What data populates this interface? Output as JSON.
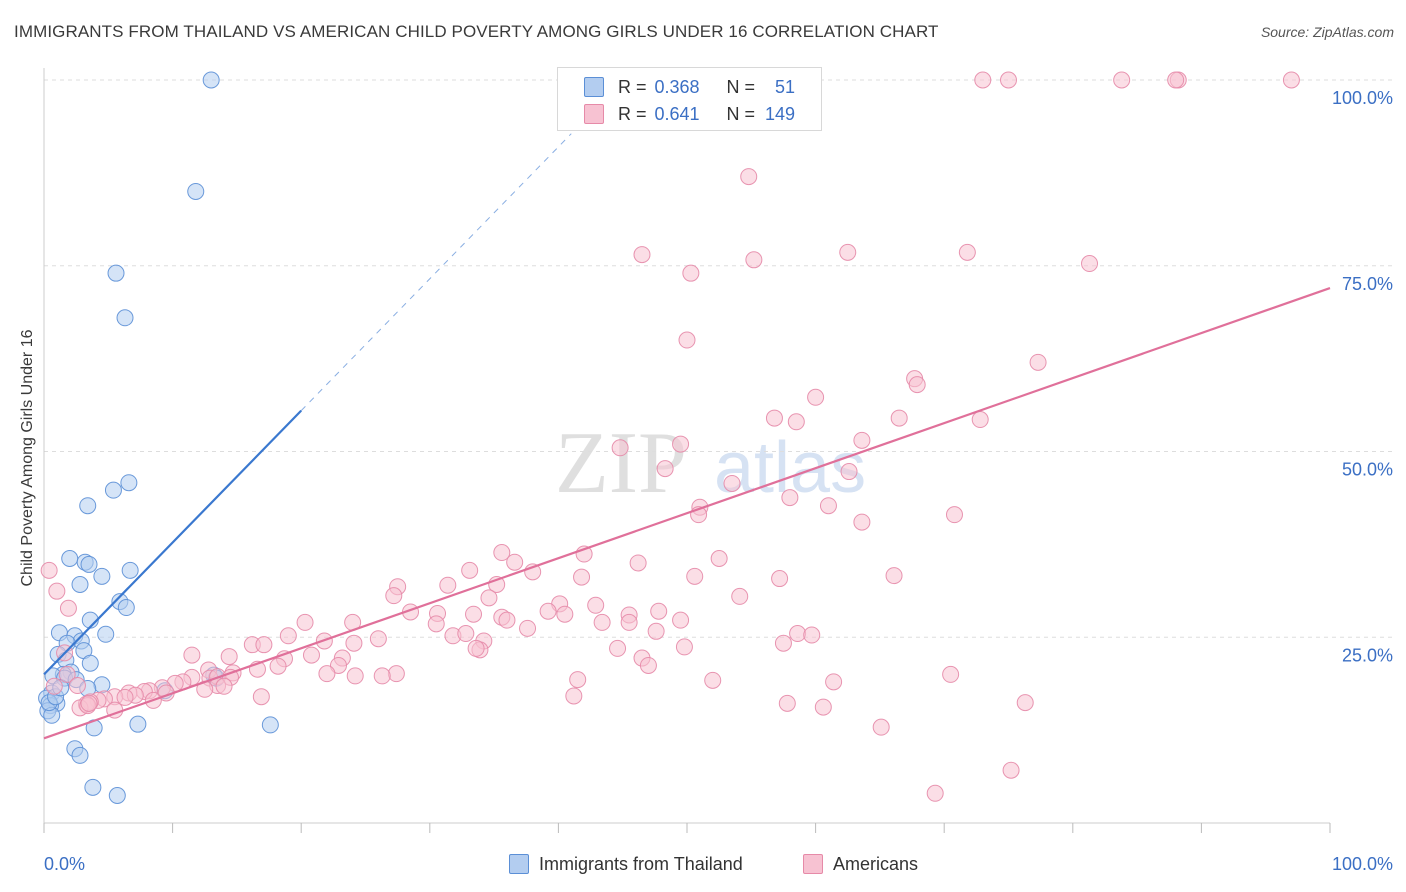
{
  "title": "IMMIGRANTS FROM THAILAND VS AMERICAN CHILD POVERTY AMONG GIRLS UNDER 16 CORRELATION CHART",
  "source": "Source: ZipAtlas.com",
  "watermark": "ZIPatlas",
  "colors": {
    "blue_fill": "#b3cdf0",
    "blue_stroke": "#5b8fd6",
    "blue_line": "#3a78cf",
    "pink_fill": "#f7c2d2",
    "pink_stroke": "#e68aa8",
    "pink_line": "#e0709a",
    "value_text": "#3b6fc4",
    "grid": "#dddddd"
  },
  "legend": {
    "r_label": "R =",
    "n_label": "N =",
    "rows": [
      {
        "r": "0.368",
        "n": "51",
        "color": "blue"
      },
      {
        "r": "0.641",
        "n": "149",
        "color": "pink"
      }
    ]
  },
  "bottom_legend": [
    {
      "label": "Immigrants from Thailand",
      "color": "blue"
    },
    {
      "label": "Americans",
      "color": "pink"
    }
  ],
  "chart_data": {
    "type": "scatter",
    "xlabel": "",
    "ylabel": "Child Poverty Among Girls Under 16",
    "xlim": [
      0,
      100
    ],
    "ylim": [
      0,
      100
    ],
    "x_tick_labels": [
      "0.0%",
      "100.0%"
    ],
    "y_tick_labels": [
      "25.0%",
      "50.0%",
      "75.0%",
      "100.0%"
    ],
    "y_ticks": [
      25,
      50,
      75,
      100
    ],
    "grid": "horizontal dashed",
    "legend_position": "top-center",
    "series": [
      {
        "name": "Immigrants from Thailand",
        "color": "blue",
        "trend": {
          "x0": 0,
          "y0": 20,
          "x1": 20,
          "y1": 55.5,
          "dash_to_x": 41
        },
        "points": [
          [
            13,
            100
          ],
          [
            11.8,
            85
          ],
          [
            5.6,
            74
          ],
          [
            6.3,
            68
          ],
          [
            6.6,
            45.8
          ],
          [
            5.4,
            44.8
          ],
          [
            3.4,
            42.7
          ],
          [
            2,
            35.6
          ],
          [
            3.2,
            35.1
          ],
          [
            3.5,
            34.8
          ],
          [
            6.7,
            34
          ],
          [
            4.5,
            33.2
          ],
          [
            2.8,
            32.1
          ],
          [
            5.9,
            29.8
          ],
          [
            6.4,
            29
          ],
          [
            3.6,
            27.3
          ],
          [
            1.2,
            25.6
          ],
          [
            2.4,
            25.2
          ],
          [
            4.8,
            25.4
          ],
          [
            2.9,
            24.5
          ],
          [
            1.8,
            24.2
          ],
          [
            3.1,
            23.2
          ],
          [
            1.1,
            22.7
          ],
          [
            1.7,
            21.9
          ],
          [
            3.6,
            21.5
          ],
          [
            2.1,
            20.3
          ],
          [
            1.5,
            20
          ],
          [
            0.7,
            19.8
          ],
          [
            1.6,
            19.5
          ],
          [
            2.5,
            19.3
          ],
          [
            4.5,
            18.6
          ],
          [
            3.4,
            18.1
          ],
          [
            0.6,
            17.5
          ],
          [
            0.2,
            16.8
          ],
          [
            1,
            16.1
          ],
          [
            0.5,
            15.8
          ],
          [
            0.3,
            15.1
          ],
          [
            0.6,
            14.5
          ],
          [
            9.4,
            17.8
          ],
          [
            13.2,
            19.9
          ],
          [
            13.4,
            19.5
          ],
          [
            7.3,
            13.3
          ],
          [
            17.6,
            13.2
          ],
          [
            3.9,
            12.8
          ],
          [
            2.4,
            10
          ],
          [
            2.8,
            9.1
          ],
          [
            3.8,
            4.8
          ],
          [
            5.7,
            3.7
          ],
          [
            0.4,
            16.2
          ],
          [
            0.9,
            17
          ],
          [
            1.3,
            18.2
          ]
        ]
      },
      {
        "name": "Americans",
        "color": "pink",
        "trend": {
          "x0": 0,
          "y0": 11.4,
          "x1": 100,
          "y1": 72
        },
        "points": [
          [
            59,
            100
          ],
          [
            75,
            100
          ],
          [
            73,
            100
          ],
          [
            83.8,
            100
          ],
          [
            88.2,
            100
          ],
          [
            88,
            100
          ],
          [
            97,
            100
          ],
          [
            54.8,
            87
          ],
          [
            46.5,
            76.5
          ],
          [
            55.2,
            75.8
          ],
          [
            62.5,
            76.8
          ],
          [
            71.8,
            76.8
          ],
          [
            50.3,
            74
          ],
          [
            81.3,
            75.3
          ],
          [
            50,
            65
          ],
          [
            77.3,
            62
          ],
          [
            67.7,
            59.8
          ],
          [
            67.9,
            59
          ],
          [
            60,
            57.3
          ],
          [
            56.8,
            54.5
          ],
          [
            58.5,
            54
          ],
          [
            66.5,
            54.5
          ],
          [
            72.8,
            54.3
          ],
          [
            63.6,
            51.5
          ],
          [
            49.5,
            51
          ],
          [
            44.8,
            50.5
          ],
          [
            48.3,
            47.7
          ],
          [
            62.6,
            47.3
          ],
          [
            53.5,
            45.7
          ],
          [
            58,
            43.8
          ],
          [
            51,
            42.5
          ],
          [
            61,
            42.7
          ],
          [
            50.9,
            41.5
          ],
          [
            70.8,
            41.5
          ],
          [
            63.6,
            40.5
          ],
          [
            35.6,
            36.4
          ],
          [
            42,
            36.2
          ],
          [
            52.5,
            35.6
          ],
          [
            36.6,
            35.1
          ],
          [
            46.2,
            35
          ],
          [
            33.1,
            34
          ],
          [
            38,
            33.8
          ],
          [
            41.8,
            33.1
          ],
          [
            50.6,
            33.2
          ],
          [
            66.1,
            33.3
          ],
          [
            57.2,
            32.9
          ],
          [
            35.2,
            32.1
          ],
          [
            31.4,
            32
          ],
          [
            27.5,
            31.8
          ],
          [
            27.2,
            30.6
          ],
          [
            34.6,
            30.3
          ],
          [
            54.1,
            30.5
          ],
          [
            40.1,
            29.5
          ],
          [
            42.9,
            29.3
          ],
          [
            28.5,
            28.4
          ],
          [
            30.6,
            28.2
          ],
          [
            40.5,
            28.1
          ],
          [
            39.2,
            28.5
          ],
          [
            33.4,
            28.1
          ],
          [
            45.5,
            28
          ],
          [
            47.8,
            28.5
          ],
          [
            35.6,
            27.7
          ],
          [
            36,
            27.3
          ],
          [
            43.4,
            27
          ],
          [
            45.5,
            27
          ],
          [
            49.5,
            27.3
          ],
          [
            20.3,
            27
          ],
          [
            24,
            27
          ],
          [
            30.5,
            26.8
          ],
          [
            37.6,
            26.2
          ],
          [
            47.6,
            25.8
          ],
          [
            58.6,
            25.5
          ],
          [
            59.7,
            25.3
          ],
          [
            31.8,
            25.2
          ],
          [
            32.8,
            25.5
          ],
          [
            19,
            25.2
          ],
          [
            21.8,
            24.5
          ],
          [
            26,
            24.8
          ],
          [
            34.2,
            24.5
          ],
          [
            24.1,
            24.2
          ],
          [
            16.2,
            24
          ],
          [
            17.1,
            24
          ],
          [
            44.6,
            23.5
          ],
          [
            49.8,
            23.7
          ],
          [
            57.5,
            24.2
          ],
          [
            33.9,
            23.3
          ],
          [
            33.6,
            23.5
          ],
          [
            20.8,
            22.6
          ],
          [
            23.2,
            22.2
          ],
          [
            18.7,
            22.1
          ],
          [
            46.5,
            22.2
          ],
          [
            14.4,
            22.4
          ],
          [
            11.5,
            22.6
          ],
          [
            22.9,
            21.2
          ],
          [
            18.2,
            21.1
          ],
          [
            47,
            21.2
          ],
          [
            12.8,
            20.6
          ],
          [
            16.6,
            20.7
          ],
          [
            22,
            20.1
          ],
          [
            11.5,
            19.6
          ],
          [
            12.9,
            19.5
          ],
          [
            14.7,
            20.2
          ],
          [
            13.5,
            19.7
          ],
          [
            14.5,
            19.6
          ],
          [
            27.4,
            20.1
          ],
          [
            26.3,
            19.8
          ],
          [
            24.2,
            19.8
          ],
          [
            41.5,
            19.3
          ],
          [
            52,
            19.2
          ],
          [
            61.4,
            19
          ],
          [
            70.5,
            20
          ],
          [
            10.8,
            19
          ],
          [
            10.2,
            18.8
          ],
          [
            13.5,
            18.5
          ],
          [
            14,
            18.4
          ],
          [
            9.2,
            18.2
          ],
          [
            9.5,
            17.5
          ],
          [
            12.5,
            18
          ],
          [
            8.2,
            17.8
          ],
          [
            7.8,
            17.7
          ],
          [
            6.6,
            17.5
          ],
          [
            7.1,
            17.2
          ],
          [
            5.5,
            17
          ],
          [
            6.3,
            16.9
          ],
          [
            4.7,
            16.7
          ],
          [
            4.2,
            16.5
          ],
          [
            8.5,
            16.5
          ],
          [
            3.6,
            16.3
          ],
          [
            41.2,
            17.1
          ],
          [
            57.8,
            16.1
          ],
          [
            76.3,
            16.2
          ],
          [
            3.3,
            16
          ],
          [
            2.8,
            15.5
          ],
          [
            5.5,
            15.2
          ],
          [
            3.4,
            15.8
          ],
          [
            60.6,
            15.6
          ],
          [
            16.9,
            17
          ],
          [
            0.4,
            34
          ],
          [
            1,
            31.2
          ],
          [
            1.9,
            28.9
          ],
          [
            1.6,
            22.9
          ],
          [
            1.8,
            20
          ],
          [
            2.6,
            18.5
          ],
          [
            0.8,
            18.4
          ],
          [
            65.1,
            12.9
          ],
          [
            75.2,
            7.1
          ],
          [
            69.3,
            4
          ],
          [
            3.5,
            16.1
          ]
        ]
      }
    ]
  }
}
